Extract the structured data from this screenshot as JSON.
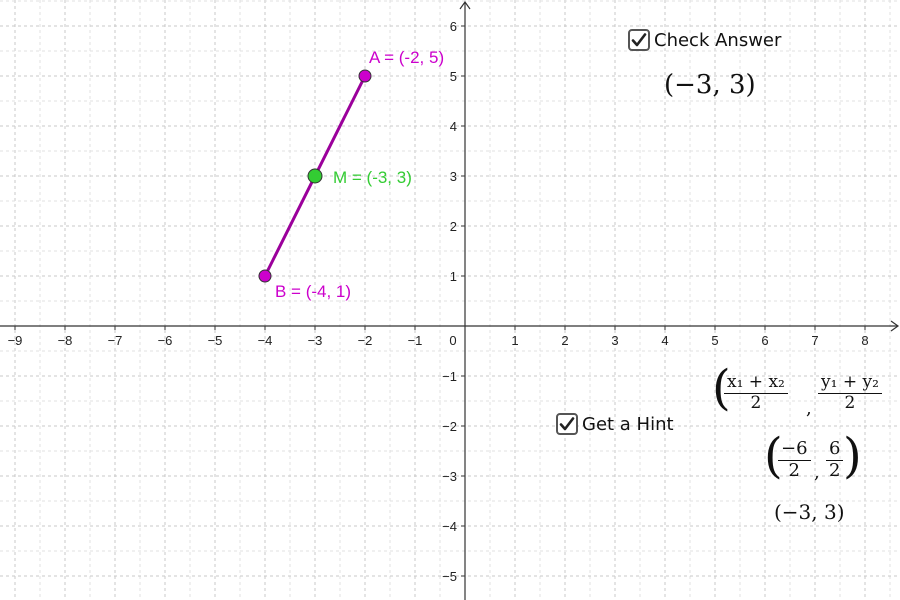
{
  "graph": {
    "x_ticks": [
      "−9",
      "−8",
      "−7",
      "−6",
      "−5",
      "−4",
      "−3",
      "−2",
      "−1",
      "0",
      "1",
      "2",
      "3",
      "4",
      "5",
      "6",
      "7",
      "8"
    ],
    "y_ticks": [
      "6",
      "5",
      "4",
      "3",
      "2",
      "1",
      "−1",
      "−2",
      "−3",
      "−4",
      "−5"
    ],
    "x_range": [
      -9.3,
      8.6
    ],
    "y_range": [
      -5.5,
      6.4
    ],
    "segment_color": "#9b009b",
    "point_A": {
      "x": -2,
      "y": 5,
      "label": "A = (-2, 5)",
      "color": "#cc00cc"
    },
    "point_B": {
      "x": -4,
      "y": 1,
      "label": "B = (-4, 1)",
      "color": "#cc00cc"
    },
    "point_M": {
      "x": -3,
      "y": 3,
      "label": "M = (-3, 3)",
      "color": "#33cc33"
    }
  },
  "check_answer": {
    "label": "Check Answer",
    "checked": true
  },
  "answer_text": "(−3, 3)",
  "get_hint": {
    "label": "Get a Hint",
    "checked": true
  },
  "hint": {
    "formula": {
      "x_num": "x₁ + x₂",
      "x_den": "2",
      "y_num": "y₁ + y₂",
      "y_den": "2"
    },
    "substituted": {
      "x_num": "−6",
      "x_den": "2",
      "y_num": "6",
      "y_den": "2"
    },
    "result": "(−3, 3)"
  }
}
